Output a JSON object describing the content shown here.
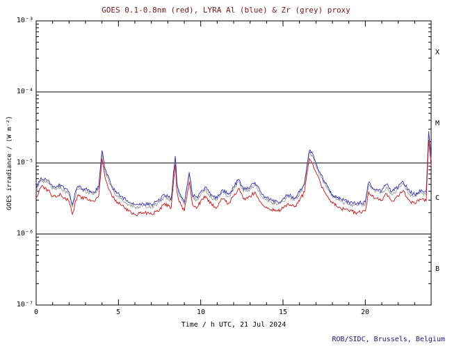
{
  "title": "GOES 0.1-0.8nm (red), LYRA Al (blue) & Zr (grey) proxy",
  "footer": "ROB/SIDC, Brussels, Belgium",
  "colors": {
    "title_text": "#7a1515",
    "footer_text": "#16167d",
    "axis": "#000000",
    "goes_red": "#cc1111",
    "lyra_al_blue": "#3434b4",
    "lyra_zr_grey": "#9a9a9a"
  },
  "yaxis": {
    "label": "GOES irradiance / (W m⁻²)",
    "ticks": [
      "10⁻³",
      "10⁻⁴",
      "10⁻⁵",
      "10⁻⁶",
      "10⁻⁷"
    ]
  },
  "xaxis": {
    "label": "Time / h UTC, 21 Jul 2024",
    "ticks": [
      "0",
      "5",
      "10",
      "15",
      "20"
    ]
  },
  "flare_classes": [
    "X",
    "M",
    "C",
    "B"
  ],
  "chart_data": {
    "type": "line",
    "title": "GOES 0.1-0.8nm (red), LYRA Al (blue) & Zr (grey) proxy",
    "xlabel": "Time / h UTC, 21 Jul 2024",
    "ylabel": "GOES irradiance / (W m⁻²)",
    "xlim": [
      0,
      24
    ],
    "ylog": true,
    "ylim": [
      1e-07,
      0.001
    ],
    "x_major_ticks": [
      0,
      5,
      10,
      15,
      20
    ],
    "x_minor_step": 1,
    "y_decades": [
      -3,
      -4,
      -5,
      -6,
      -7
    ],
    "hlines": [
      0.0001,
      1e-05,
      1e-06
    ],
    "legend_position": "none",
    "grid": false,
    "x": [
      0.0,
      0.3,
      0.7,
      1.0,
      1.5,
      2.0,
      2.2,
      2.5,
      3.0,
      3.5,
      3.8,
      4.0,
      4.2,
      4.5,
      4.8,
      5.2,
      5.6,
      6.0,
      6.5,
      7.0,
      7.5,
      7.8,
      8.2,
      8.45,
      8.55,
      8.7,
      9.0,
      9.3,
      9.5,
      9.8,
      10.0,
      10.3,
      10.7,
      11.0,
      11.3,
      11.7,
      12.0,
      12.3,
      12.6,
      13.0,
      13.3,
      13.7,
      14.0,
      14.3,
      14.7,
      15.0,
      15.3,
      15.7,
      16.0,
      16.3,
      16.6,
      16.8,
      17.0,
      17.3,
      17.7,
      18.0,
      18.5,
      19.0,
      19.5,
      20.0,
      20.2,
      20.4,
      20.7,
      21.0,
      21.3,
      21.6,
      22.0,
      22.3,
      22.7,
      23.0,
      23.4,
      23.7,
      23.85,
      24.0
    ],
    "series": [
      {
        "name": "LYRA Zr proxy",
        "color_key": "lyra_zr_grey",
        "values": [
          4e-06,
          5.8e-06,
          5.3e-06,
          4.3e-06,
          4.5e-06,
          3.6e-06,
          2.4e-06,
          4.3e-06,
          4e-06,
          3.6e-06,
          4.3e-06,
          1.4e-05,
          7.5e-06,
          5e-06,
          3.6e-06,
          3.1e-06,
          2.6e-06,
          2.4e-06,
          2.5e-06,
          2.4e-06,
          2.8e-06,
          3.4e-06,
          2.9e-06,
          1.15e-05,
          5e-06,
          3.5e-06,
          2.6e-06,
          6.9e-06,
          3.3e-06,
          3e-06,
          3.6e-06,
          4.3e-06,
          3.1e-06,
          3e-06,
          3.9e-06,
          3.4e-06,
          4.3e-06,
          5.5e-06,
          3.9e-06,
          4.3e-06,
          4.9e-06,
          3.4e-06,
          3e-06,
          2.8e-06,
          2.6e-06,
          2.9e-06,
          3.4e-06,
          3e-06,
          3.6e-06,
          4.9e-06,
          1.4e-05,
          1.25e-05,
          9.4e-06,
          6.3e-06,
          4.3e-06,
          3.4e-06,
          2.9e-06,
          2.6e-06,
          2.5e-06,
          2.6e-06,
          4.9e-06,
          4.3e-06,
          4e-06,
          3.8e-06,
          4.6e-06,
          3.6e-06,
          4.3e-06,
          5.1e-06,
          3.6e-06,
          3.4e-06,
          3.9e-06,
          3.6e-06,
          2.6e-05,
          1.1e-05
        ]
      },
      {
        "name": "LYRA Al proxy",
        "color_key": "lyra_al_blue",
        "values": [
          4.3e-06,
          6.2e-06,
          5.7e-06,
          4.6e-06,
          4.9e-06,
          3.9e-06,
          2.6e-06,
          4.6e-06,
          4.3e-06,
          3.9e-06,
          4.6e-06,
          1.5e-05,
          8.1e-06,
          5.4e-06,
          3.9e-06,
          3.4e-06,
          2.8e-06,
          2.6e-06,
          2.7e-06,
          2.6e-06,
          3e-06,
          3.6e-06,
          3.1e-06,
          1.25e-05,
          5.4e-06,
          3.8e-06,
          2.8e-06,
          7.4e-06,
          3.5e-06,
          3.2e-06,
          3.9e-06,
          4.6e-06,
          3.4e-06,
          3.2e-06,
          4.2e-06,
          3.6e-06,
          4.6e-06,
          5.9e-06,
          4.2e-06,
          4.6e-06,
          5.3e-06,
          3.6e-06,
          3.2e-06,
          3e-06,
          2.8e-06,
          3.1e-06,
          3.6e-06,
          3.2e-06,
          3.9e-06,
          5.3e-06,
          1.5e-05,
          1.35e-05,
          1e-05,
          6.8e-06,
          4.6e-06,
          3.6e-06,
          3.1e-06,
          2.8e-06,
          2.7e-06,
          2.8e-06,
          5.3e-06,
          4.6e-06,
          4.3e-06,
          4.1e-06,
          5e-06,
          3.9e-06,
          4.6e-06,
          5.5e-06,
          3.9e-06,
          3.6e-06,
          4.2e-06,
          3.9e-06,
          2.8e-05,
          1.2e-05
        ]
      },
      {
        "name": "GOES 0.1-0.8nm",
        "color_key": "goes_red",
        "values": [
          3.2e-06,
          4.6e-06,
          4.2e-06,
          3.4e-06,
          3.6e-06,
          2.9e-06,
          1.9e-06,
          3.4e-06,
          3.2e-06,
          2.9e-06,
          3.4e-06,
          1.15e-05,
          6e-06,
          4e-06,
          2.9e-06,
          2.5e-06,
          2.1e-06,
          1.9e-06,
          2e-06,
          1.9e-06,
          2.2e-06,
          2.7e-06,
          2.3e-06,
          9.5e-06,
          4e-06,
          2.8e-06,
          2.1e-06,
          5.5e-06,
          2.6e-06,
          2.4e-06,
          2.9e-06,
          3.4e-06,
          2.5e-06,
          2.4e-06,
          3.1e-06,
          2.7e-06,
          3.4e-06,
          4.4e-06,
          3.1e-06,
          3.4e-06,
          3.9e-06,
          2.7e-06,
          2.4e-06,
          2.2e-06,
          2.1e-06,
          2.3e-06,
          2.7e-06,
          2.4e-06,
          2.9e-06,
          3.9e-06,
          1.15e-05,
          1e-05,
          7.5e-06,
          5e-06,
          3.4e-06,
          2.7e-06,
          2.3e-06,
          2.1e-06,
          2e-06,
          2.1e-06,
          3.9e-06,
          3.4e-06,
          3.2e-06,
          3e-06,
          3.7e-06,
          2.9e-06,
          3.4e-06,
          4.1e-06,
          2.9e-06,
          2.7e-06,
          3.1e-06,
          2.9e-06,
          2.1e-05,
          9e-06
        ]
      }
    ]
  }
}
